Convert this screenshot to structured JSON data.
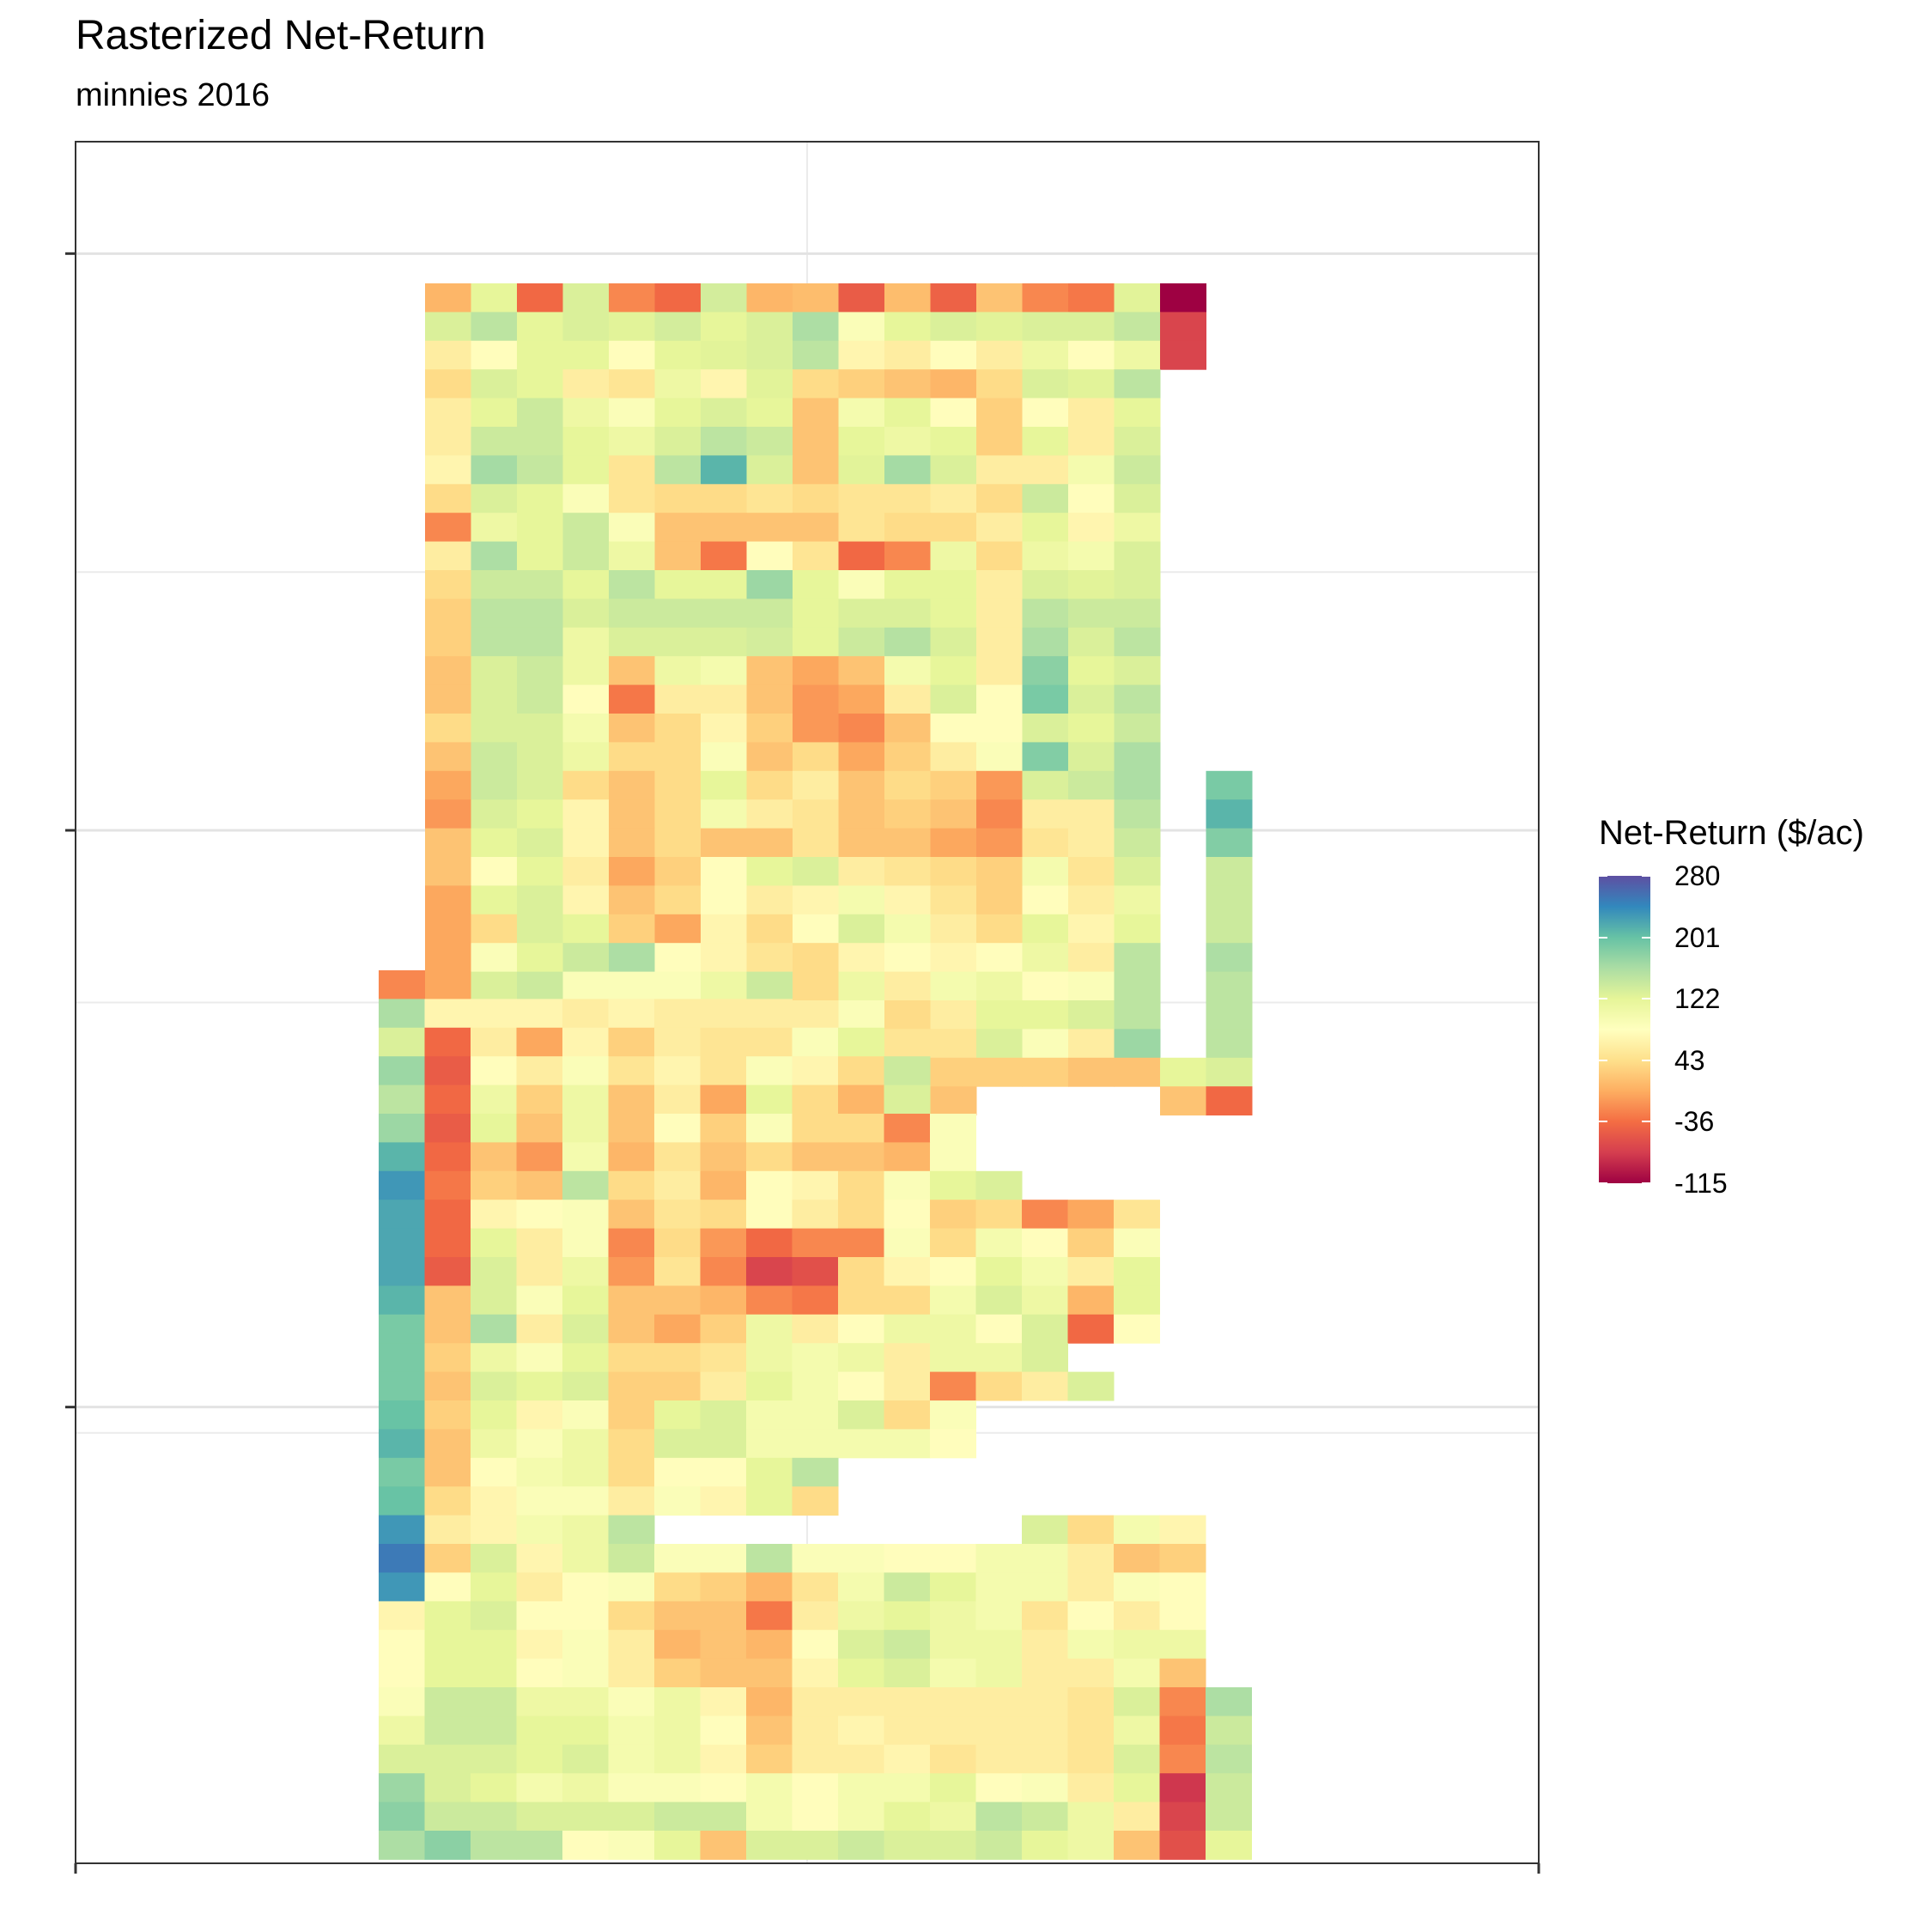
{
  "chart_data": {
    "type": "heatmap",
    "title": "Rasterized Net-Return",
    "subtitle": "minnies 2016",
    "legend": {
      "title": "Net-Return ($/ac)",
      "placement": "right",
      "min": -115,
      "max": 280,
      "ticks": [
        280,
        201,
        122,
        43,
        -36,
        -115
      ],
      "palette": "Spectral",
      "colors": [
        "#9e0142",
        "#d53e4f",
        "#f46d43",
        "#fdae61",
        "#fee08b",
        "#ffffbf",
        "#e6f598",
        "#abdda4",
        "#66c2a5",
        "#3288bd",
        "#5e4fa2"
      ]
    },
    "grid": true,
    "x_tick_labels": [],
    "y_tick_labels": [],
    "grid_cols": 18,
    "grid_rows": 31,
    "blocks": [
      {
        "col_start": 1,
        "row_start": 0,
        "rows": [
          [
            10,
            120,
            -40,
            130,
            -20,
            -40,
            135,
            10,
            15,
            -50,
            15,
            -45,
            20,
            -20,
            -30,
            125,
            -115
          ],
          [
            130,
            150,
            120,
            130,
            125,
            135,
            120,
            130,
            160,
            90,
            120,
            130,
            125,
            130,
            130,
            145,
            -70
          ],
          [
            60,
            80,
            120,
            120,
            80,
            120,
            125,
            130,
            150,
            70,
            60,
            80,
            60,
            110,
            80,
            110,
            -70
          ],
          [
            40,
            130,
            120,
            60,
            50,
            110,
            70,
            125,
            40,
            30,
            20,
            10,
            40,
            130,
            125,
            150
          ],
          [
            60,
            120,
            140,
            110,
            90,
            120,
            130,
            120,
            20,
            100,
            120,
            80,
            30,
            80,
            60,
            120
          ],
          [
            60,
            140,
            140,
            120,
            110,
            130,
            150,
            140,
            20,
            120,
            110,
            120,
            30,
            120,
            60,
            130
          ],
          [
            70,
            165,
            145,
            120,
            50,
            150,
            210,
            130,
            20,
            125,
            165,
            130,
            60,
            60,
            100,
            140
          ],
          [
            40,
            130,
            120,
            90,
            50,
            40,
            40,
            50,
            40,
            50,
            50,
            60,
            40,
            140,
            80,
            130
          ],
          [
            -20,
            110,
            120,
            140,
            90,
            20,
            20,
            20,
            20,
            50,
            40,
            40,
            60,
            120,
            70,
            110
          ],
          [
            60,
            160,
            120,
            140,
            110,
            20,
            -30,
            80,
            50,
            -40,
            -20,
            110,
            40,
            110,
            100,
            130
          ],
          [
            40,
            140,
            140,
            120,
            150,
            120,
            120,
            170,
            120,
            90,
            120,
            120,
            60,
            130,
            125,
            130
          ],
          [
            30,
            150,
            150,
            130,
            140,
            140,
            140,
            140,
            120,
            130,
            130,
            120,
            60,
            150,
            140,
            140
          ],
          [
            30,
            150,
            150,
            110,
            130,
            130,
            130,
            135,
            120,
            140,
            155,
            130,
            60,
            160,
            130,
            150
          ],
          [
            20,
            130,
            140,
            110,
            20,
            110,
            100,
            20,
            0,
            20,
            100,
            120,
            60,
            180,
            120,
            130
          ],
          [
            20,
            130,
            140,
            80,
            -30,
            60,
            60,
            20,
            -10,
            0,
            60,
            130,
            80,
            190,
            130,
            150
          ],
          [
            40,
            130,
            130,
            100,
            20,
            40,
            70,
            30,
            -10,
            -20,
            20,
            80,
            80,
            130,
            120,
            140
          ],
          [
            20,
            140,
            130,
            110,
            40,
            40,
            90,
            20,
            40,
            0,
            30,
            60,
            90,
            185,
            130,
            160
          ],
          [
            0,
            140,
            130,
            40,
            20,
            40,
            120,
            40,
            60,
            20,
            40,
            30,
            -10,
            130,
            140,
            160,
            null,
            190
          ],
          [
            -10,
            130,
            120,
            70,
            20,
            40,
            100,
            60,
            50,
            20,
            30,
            20,
            -20,
            60,
            60,
            150,
            null,
            210
          ],
          [
            20,
            120,
            130,
            70,
            20,
            40,
            20,
            20,
            50,
            20,
            20,
            0,
            -10,
            50,
            60,
            140,
            null,
            185
          ],
          [
            20,
            80,
            120,
            60,
            0,
            30,
            80,
            120,
            130,
            60,
            50,
            40,
            30,
            100,
            50,
            130,
            null,
            140
          ],
          [
            0,
            120,
            130,
            70,
            20,
            40,
            80,
            60,
            70,
            100,
            70,
            50,
            30,
            80,
            60,
            110,
            null,
            140
          ],
          [
            0,
            40,
            130,
            120,
            30,
            0,
            70,
            40,
            80,
            130,
            100,
            60,
            40,
            120,
            70,
            120,
            null,
            140
          ],
          [
            0,
            90,
            120,
            140,
            160,
            80,
            70,
            50,
            40,
            70,
            80,
            70,
            80,
            110,
            60,
            150,
            null,
            160
          ],
          [
            0,
            130,
            140,
            90,
            90,
            90,
            110,
            140,
            40,
            110,
            60,
            100,
            110,
            80,
            90,
            150,
            null,
            150
          ],
          [
            0,
            50,
            30,
            40,
            70,
            120,
            130,
            120,
            60,
            90,
            40,
            60,
            120,
            120,
            130,
            150,
            null,
            150
          ],
          [
            0,
            50,
            40,
            20,
            40,
            60,
            100,
            60,
            20,
            80,
            50,
            50,
            130,
            90,
            60,
            170,
            null,
            150
          ],
          [
            -20,
            80,
            60,
            30,
            40,
            70,
            120,
            170,
            130,
            100,
            40,
            30,
            30,
            30,
            20,
            20,
            120,
            130
          ],
          [
            100,
            80,
            50,
            50,
            40,
            50,
            null,
            null,
            null,
            null,
            40,
            20,
            null,
            null,
            null,
            null,
            20,
            -40
          ]
        ]
      },
      {
        "col_start": 0,
        "row_start": 0,
        "rows": [
          [
            -20
          ],
          [
            160,
            70,
            70,
            70,
            60,
            70,
            60,
            60,
            60
          ],
          [
            130,
            -40,
            60,
            0,
            70,
            30,
            60,
            50,
            50,
            90,
            120
          ],
          [
            170,
            -50,
            80,
            60,
            90,
            50,
            70,
            50,
            90,
            70,
            40,
            140
          ],
          [
            150,
            -40,
            110,
            30,
            110,
            20,
            60,
            0,
            120,
            40,
            10,
            130
          ],
          [
            170,
            -50,
            120,
            20,
            110,
            20,
            80,
            30,
            90,
            40,
            40,
            -20,
            90
          ],
          [
            210,
            -40,
            20,
            -10,
            100,
            10,
            50,
            20,
            40,
            20,
            20,
            10,
            90
          ],
          [
            230,
            -30,
            30,
            20,
            150,
            40,
            60,
            10,
            80,
            70,
            40,
            90,
            120,
            130
          ],
          [
            220,
            -40,
            70,
            80,
            90,
            20,
            50,
            40,
            80,
            60,
            40,
            80,
            30,
            40,
            -20,
            0,
            50
          ],
          [
            220,
            -40,
            120,
            60,
            90,
            -20,
            40,
            -10,
            -40,
            -20,
            -20,
            90,
            40,
            100,
            80,
            30,
            90
          ],
          [
            220,
            -50,
            130,
            60,
            110,
            -10,
            50,
            -20,
            -70,
            -60,
            40,
            70,
            80,
            120,
            100,
            60,
            120
          ],
          [
            210,
            20,
            130,
            90,
            120,
            20,
            20,
            10,
            -20,
            -30,
            40,
            40,
            100,
            130,
            110,
            10,
            120
          ],
          [
            190,
            20,
            160,
            60,
            130,
            20,
            0,
            30,
            110,
            60,
            80,
            110,
            110,
            80,
            130,
            -40,
            80
          ],
          [
            190,
            30,
            110,
            90,
            120,
            40,
            40,
            50,
            110,
            100,
            110,
            60,
            110,
            110,
            130
          ],
          [
            190,
            20,
            130,
            120,
            130,
            30,
            30,
            60,
            120,
            100,
            80,
            60,
            -20,
            40,
            60,
            130
          ],
          [
            200,
            30,
            120,
            70,
            90,
            30,
            120,
            130,
            100,
            100,
            130,
            40,
            90
          ],
          [
            210,
            20,
            110,
            90,
            110,
            40,
            130,
            130,
            100,
            100,
            100,
            100,
            80
          ],
          [
            190,
            20,
            80,
            100,
            110,
            40,
            80,
            80,
            120,
            150,
            null
          ],
          [
            200,
            40,
            70,
            90,
            90,
            60,
            90,
            70,
            120,
            40,
            null
          ],
          [
            230,
            60,
            70,
            100,
            110,
            150,
            null,
            null,
            null,
            null,
            null,
            null,
            null,
            null,
            130,
            40,
            100,
            70
          ],
          [
            250,
            30,
            130,
            70,
            110,
            140,
            90,
            90,
            150,
            90,
            90,
            80,
            80,
            100,
            100,
            60,
            20,
            30
          ],
          [
            230,
            80,
            120,
            60,
            80,
            90,
            40,
            30,
            10,
            50,
            100,
            140,
            120,
            100,
            100,
            60,
            90,
            80
          ],
          [
            70,
            120,
            130,
            80,
            80,
            40,
            20,
            20,
            -30,
            60,
            110,
            120,
            110,
            100,
            50,
            80,
            60,
            80
          ],
          [
            80,
            120,
            120,
            70,
            90,
            60,
            10,
            20,
            10,
            80,
            130,
            140,
            110,
            110,
            60,
            100,
            110,
            110
          ],
          [
            80,
            120,
            120,
            80,
            90,
            60,
            30,
            20,
            20,
            70,
            120,
            130,
            100,
            110,
            60,
            60,
            100,
            20
          ],
          [
            90,
            140,
            140,
            110,
            110,
            90,
            110,
            70,
            10,
            60,
            60,
            60,
            60,
            60,
            60,
            50,
            130,
            -20,
            160
          ],
          [
            110,
            140,
            140,
            120,
            120,
            100,
            110,
            80,
            20,
            60,
            70,
            60,
            60,
            60,
            60,
            50,
            110,
            -30,
            140
          ],
          [
            130,
            130,
            130,
            120,
            130,
            100,
            110,
            70,
            30,
            60,
            60,
            70,
            50,
            60,
            60,
            50,
            130,
            -20,
            150
          ],
          [
            170,
            130,
            120,
            100,
            110,
            90,
            90,
            80,
            100,
            80,
            100,
            100,
            120,
            80,
            90,
            60,
            120,
            -80,
            140
          ],
          [
            180,
            140,
            140,
            130,
            130,
            130,
            140,
            140,
            100,
            80,
            100,
            120,
            110,
            150,
            140,
            110,
            60,
            -70,
            140
          ],
          [
            160,
            180,
            150,
            150,
            80,
            90,
            120,
            20,
            130,
            130,
            140,
            130,
            130,
            140,
            120,
            110,
            20,
            -60,
            120
          ],
          [
            180,
            190,
            160,
            90,
            120,
            null,
            null,
            140,
            100,
            100,
            100,
            110,
            120,
            120,
            110,
            120,
            80,
            -30,
            150
          ],
          [
            140,
            170,
            130,
            80,
            120,
            null,
            null,
            null,
            90,
            70,
            70,
            90,
            110,
            130,
            110,
            110,
            80,
            -20,
            160
          ],
          [
            150,
            180,
            120,
            80,
            130,
            null,
            null,
            null,
            120,
            110,
            120,
            130,
            -20,
            10,
            60,
            60,
            60,
            80,
            120
          ],
          [
            160,
            180,
            60,
            80,
            null,
            null,
            null,
            null,
            null,
            null,
            null,
            120,
            90,
            80,
            60,
            40,
            30,
            110,
            120,
            140
          ],
          [
            -70,
            130,
            80,
            80,
            null,
            null,
            null,
            null,
            null,
            null,
            null,
            null,
            null,
            null,
            null,
            null,
            40,
            10
          ]
        ]
      }
    ]
  }
}
